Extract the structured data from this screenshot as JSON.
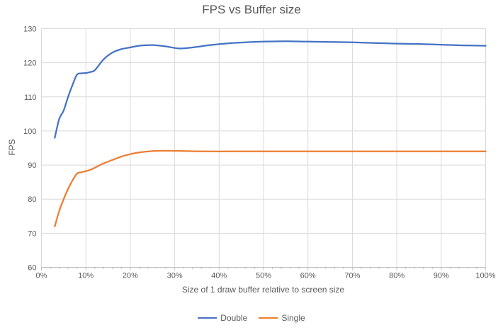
{
  "chart_data": {
    "type": "line",
    "title": "FPS vs Buffer size",
    "xlabel": "Size of 1 draw buffer relative to screen size",
    "ylabel": "FPS",
    "x_tick_format": "percent",
    "xlim": [
      0,
      100
    ],
    "ylim": [
      60,
      130
    ],
    "x_major_ticks": [
      0,
      10,
      20,
      30,
      40,
      50,
      60,
      70,
      80,
      90,
      100
    ],
    "x_minor_tick_step": 2,
    "y_ticks": [
      60,
      70,
      80,
      90,
      100,
      110,
      120,
      130
    ],
    "grid": true,
    "line_style": "smooth",
    "legend_position": "bottom",
    "series": [
      {
        "name": "Double",
        "color": "#4472C4",
        "x": [
          3,
          4,
          5,
          6,
          7,
          8,
          9,
          10,
          11,
          12,
          14,
          16,
          18,
          20,
          22,
          25,
          28,
          31,
          34,
          38,
          42,
          46,
          50,
          55,
          60,
          65,
          70,
          75,
          80,
          85,
          90,
          95,
          100
        ],
        "y": [
          98,
          103.5,
          106,
          110,
          113.5,
          116.5,
          116.9,
          117,
          117.3,
          117.8,
          121,
          123,
          124,
          124.5,
          125,
          125.2,
          124.8,
          124.2,
          124.5,
          125.2,
          125.7,
          126,
          126.2,
          126.3,
          126.2,
          126.1,
          126,
          125.8,
          125.6,
          125.5,
          125.3,
          125.1,
          125
        ]
      },
      {
        "name": "Single",
        "color": "#ED7D31",
        "x": [
          3,
          4,
          5,
          6,
          7,
          8,
          9,
          10,
          11,
          12,
          14,
          16,
          18,
          20,
          22,
          25,
          28,
          31,
          34,
          38,
          42,
          46,
          50,
          55,
          60,
          65,
          70,
          75,
          80,
          85,
          90,
          95,
          100
        ],
        "y": [
          72,
          76.5,
          80,
          83,
          85.5,
          87.5,
          87.9,
          88.2,
          88.6,
          89.2,
          90.5,
          91.5,
          92.5,
          93.2,
          93.7,
          94.1,
          94.2,
          94.15,
          94.05,
          94,
          94,
          94,
          94,
          94,
          94,
          94,
          94,
          94,
          94,
          94,
          94,
          94,
          94
        ]
      }
    ],
    "style": {
      "gridline_color": "#D9D9D9",
      "axis_line_color": "#BFBFBF",
      "tick_color": "#BFBFBF",
      "text_color": "#595959",
      "background": "#FFFFFF",
      "line_width": 2.25
    }
  }
}
